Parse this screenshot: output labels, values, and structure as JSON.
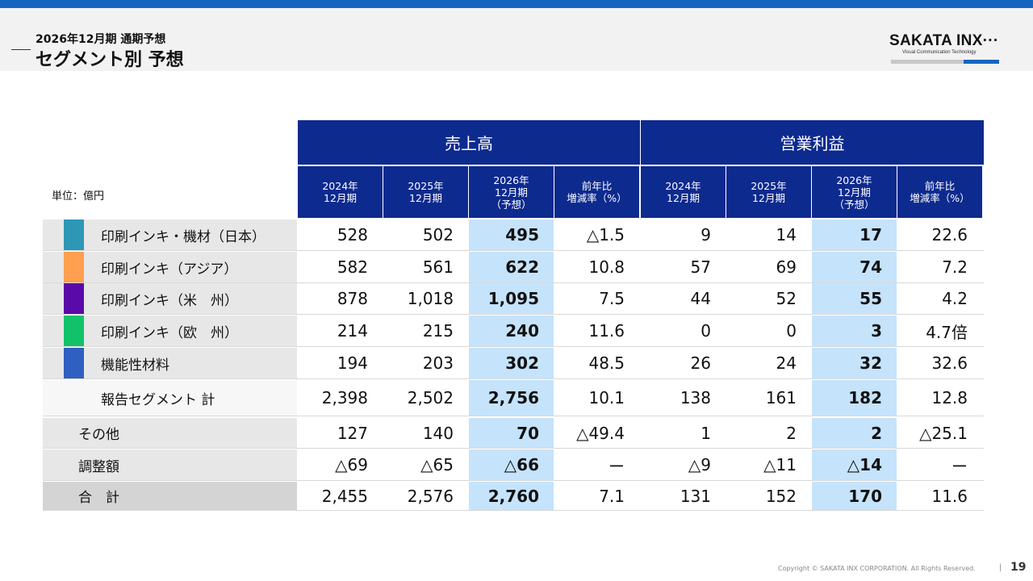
{
  "header": {
    "subtitle": "2026年12月期 通期予想",
    "title": "セグメント別 予想"
  },
  "logo": {
    "name": "SAKATA INX",
    "tagline": "Visual Communication Technology",
    "accent_color": "#1565c0"
  },
  "table": {
    "unit_label": "単位：億円",
    "groups": [
      "売上高",
      "営業利益"
    ],
    "columns": [
      "2024年\n12月期",
      "2025年\n12月期",
      "2026年\n12月期\n（予想）",
      "前年比\n増減率（%）",
      "2024年\n12月期",
      "2025年\n12月期",
      "2026年\n12月期\n（予想）",
      "前年比\n増減率（%）"
    ],
    "rows": [
      {
        "label": "印刷インキ・機材（日本）",
        "color": "#2e97b5",
        "values": [
          "528",
          "502",
          "495",
          "△1.5",
          "9",
          "14",
          "17",
          "22.6"
        ]
      },
      {
        "label": "印刷インキ（アジア）",
        "color": "#ff9f4f",
        "values": [
          "582",
          "561",
          "622",
          "10.8",
          "57",
          "69",
          "74",
          "7.2"
        ]
      },
      {
        "label": "印刷インキ（米　州）",
        "color": "#5a0aa8",
        "values": [
          "878",
          "1,018",
          "1,095",
          "7.5",
          "44",
          "52",
          "55",
          "4.2"
        ]
      },
      {
        "label": "印刷インキ（欧　州）",
        "color": "#12c26a",
        "values": [
          "214",
          "215",
          "240",
          "11.6",
          "0",
          "0",
          "3",
          "4.7倍"
        ]
      },
      {
        "label": "機能性材料",
        "color": "#2f5fc0",
        "values": [
          "194",
          "203",
          "302",
          "48.5",
          "26",
          "24",
          "32",
          "32.6"
        ]
      },
      {
        "label": "報告セグメント 計",
        "values": [
          "2,398",
          "2,502",
          "2,756",
          "10.1",
          "138",
          "161",
          "182",
          "12.8"
        ]
      },
      {
        "label": "その他",
        "values": [
          "127",
          "140",
          "70",
          "△49.4",
          "1",
          "2",
          "2",
          "△25.1"
        ]
      },
      {
        "label": "調整額",
        "values": [
          "△69",
          "△65",
          "△66",
          "ー",
          "△9",
          "△11",
          "△14",
          "ー"
        ]
      },
      {
        "label": "合　計",
        "values": [
          "2,455",
          "2,576",
          "2,760",
          "7.1",
          "131",
          "152",
          "170",
          "11.6"
        ]
      }
    ]
  },
  "footer": {
    "copyright": "Copyright © SAKATA INX CORPORATION. All Rights Reserved.",
    "page_number": "19"
  }
}
